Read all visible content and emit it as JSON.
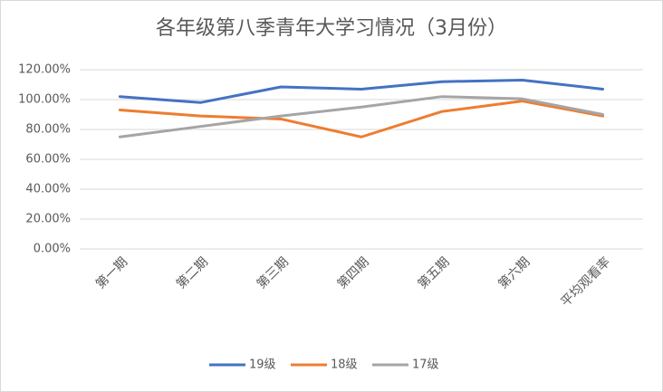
{
  "chart_data": {
    "type": "line",
    "title": "各年级第八季青年大学习情况（3月份）",
    "categories": [
      "第一期",
      "第二期",
      "第三期",
      "第四期",
      "第五期",
      "第六期",
      "平均观看率"
    ],
    "series": [
      {
        "name": "19级",
        "color": "#4472c4",
        "values": [
          102,
          98,
          108.5,
          107,
          112,
          113,
          107
        ]
      },
      {
        "name": "18级",
        "color": "#ed7d31",
        "values": [
          93,
          89,
          87,
          75,
          92,
          99,
          89
        ]
      },
      {
        "name": "17级",
        "color": "#a5a5a5",
        "values": [
          75,
          82,
          89,
          95,
          102,
          100.5,
          90
        ]
      }
    ],
    "ylim": [
      0,
      120
    ],
    "yticks": [
      {
        "value": 0,
        "label": "0.00%"
      },
      {
        "value": 20,
        "label": "20.00%"
      },
      {
        "value": 40,
        "label": "40.00%"
      },
      {
        "value": 60,
        "label": "60.00%"
      },
      {
        "value": 80,
        "label": "80.00%"
      },
      {
        "value": 100,
        "label": "100.00%"
      },
      {
        "value": 120,
        "label": "120.00%"
      }
    ],
    "grid": true,
    "legend": "bottom"
  }
}
